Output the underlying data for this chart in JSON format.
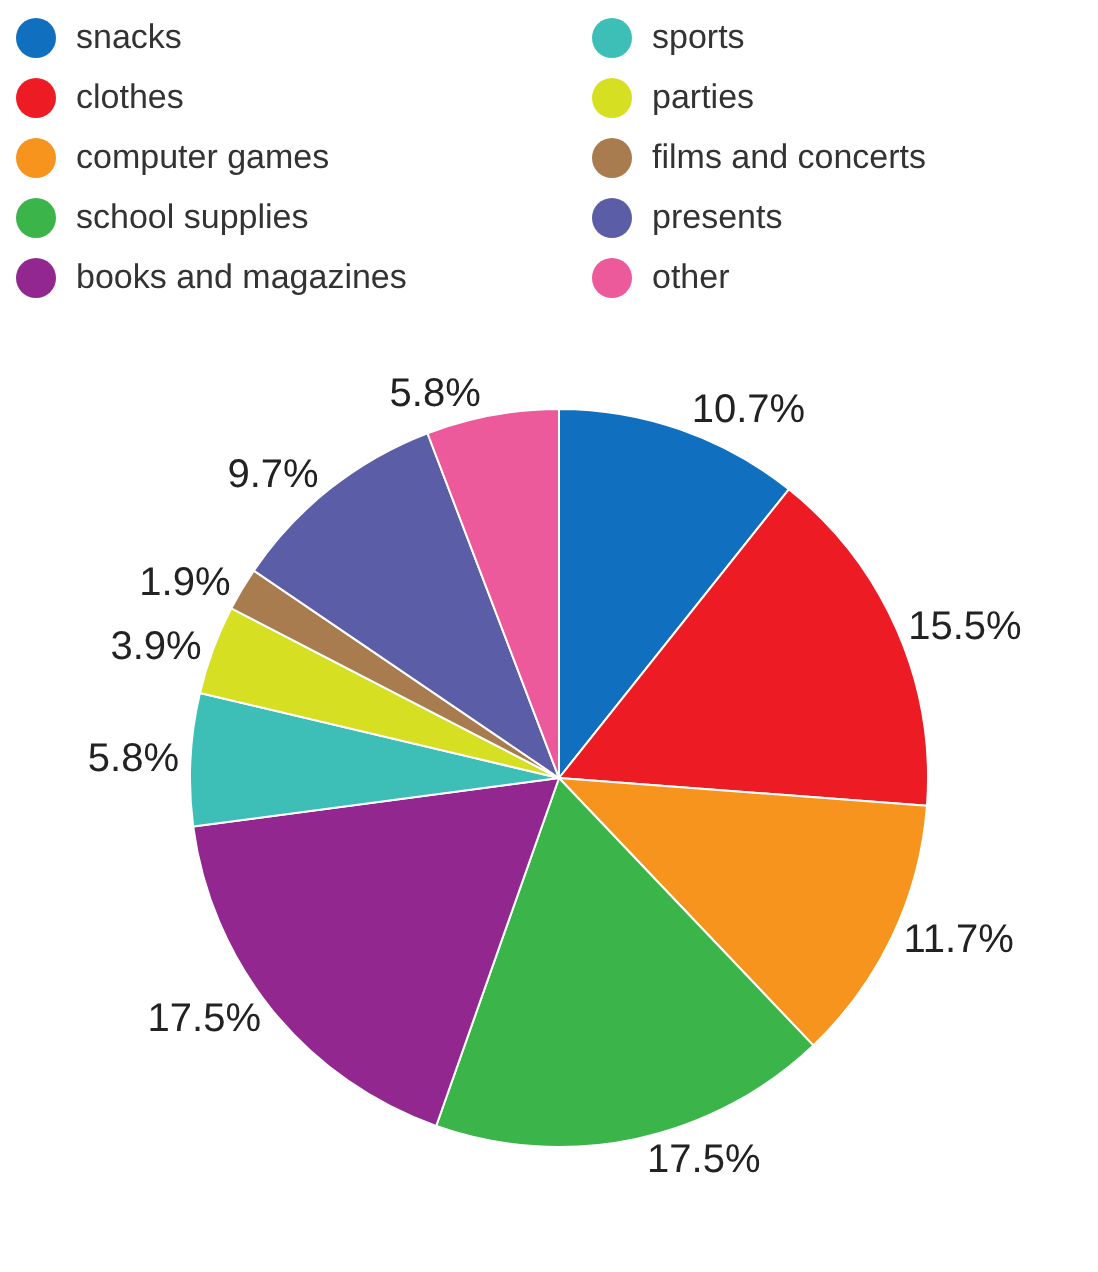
{
  "chart_data": {
    "type": "pie",
    "categories": [
      "snacks",
      "clothes",
      "computer games",
      "school supplies",
      "books and magazines",
      "sports",
      "parties",
      "films and concerts",
      "presents",
      "other"
    ],
    "values": [
      10.7,
      15.5,
      11.7,
      17.5,
      17.5,
      5.8,
      3.9,
      1.9,
      9.7,
      5.8
    ],
    "value_labels": [
      "10.7%",
      "15.5%",
      "11.7%",
      "17.5%",
      "17.5%",
      "5.8%",
      "3.9%",
      "1.9%",
      "9.7%",
      "5.8%"
    ],
    "colors": [
      "#1070bf",
      "#ed1c24",
      "#f7941d",
      "#3bb54a",
      "#92278f",
      "#3dbfb8",
      "#d7df23",
      "#a97c50",
      "#5b5ea6",
      "#ec5a9b"
    ],
    "legend": "top"
  }
}
